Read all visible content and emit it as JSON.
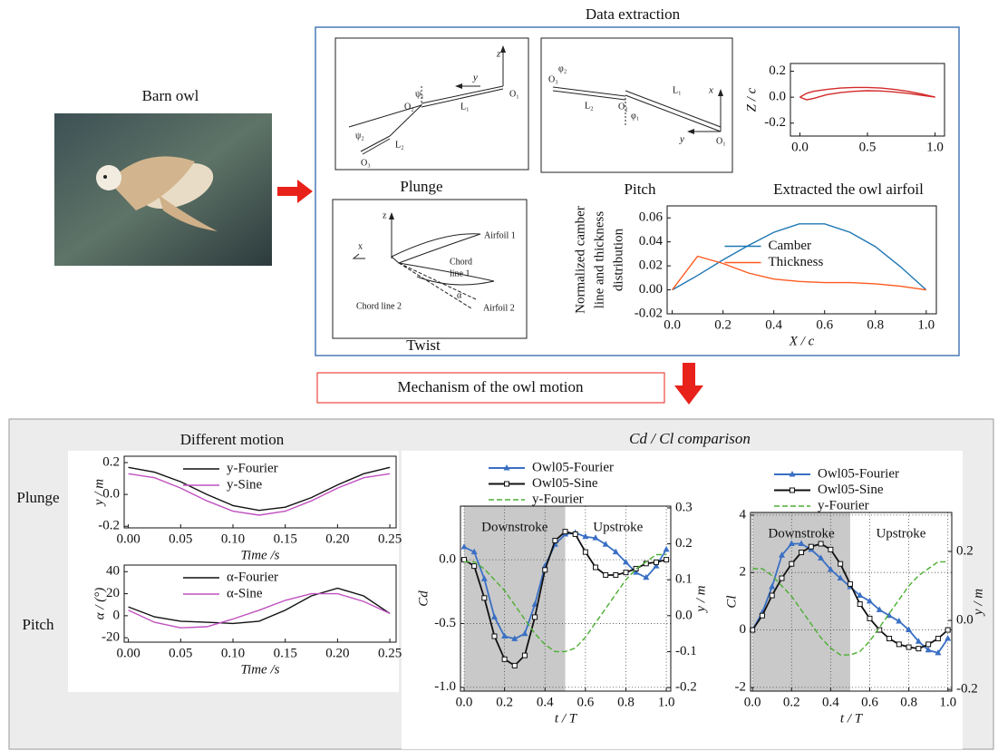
{
  "texts": {
    "barn_owl": "Barn owl",
    "data_extraction": "Data extraction",
    "plunge": "Plunge",
    "pitch": "Pitch",
    "twist": "Twist",
    "mechanism": "Mechanism of the owl motion",
    "different_motion": "Different motion",
    "comparison": "Cd / Cl comparison",
    "row_plunge": "Plunge",
    "row_pitch": "Pitch"
  },
  "diagrams": {
    "plunge": {
      "z": "z",
      "y": "y",
      "o1": "O₁",
      "o2": "O₂",
      "o3": "O₃",
      "psi1": "ψ₁",
      "psi2": "ψ₂",
      "l1": "L₁",
      "l2": "L₂"
    },
    "pitch": {
      "phi2": "φ₂",
      "o3": "O₃",
      "l2": "L₂",
      "o2": "O₂",
      "l1": "L₁",
      "x": "x",
      "phi1": "φ₁",
      "y": "y",
      "o1": "O₁"
    },
    "twist": {
      "z": "z",
      "x": "x",
      "airfoil1": "Airfoil 1",
      "chord1": [
        "Chord",
        "line 1"
      ],
      "chord2": "Chord line 2",
      "alpha": "α",
      "airfoil2": "Airfoil 2"
    }
  },
  "chart_data": [
    {
      "type": "line",
      "title": "Extracted the owl airfoil",
      "ylabel": "Z / c",
      "x": [
        0,
        0.05,
        0.1,
        0.2,
        0.3,
        0.4,
        0.5,
        0.6,
        0.7,
        0.8,
        0.9,
        1.0
      ],
      "series": [
        {
          "color": "#d42a2a",
          "values": [
            0,
            0.03,
            0.045,
            0.06,
            0.07,
            0.075,
            0.075,
            0.07,
            0.06,
            0.045,
            0.025,
            0
          ]
        },
        {
          "color": "#d42a2a",
          "values": [
            0,
            -0.02,
            -0.01,
            0.02,
            0.035,
            0.045,
            0.05,
            0.048,
            0.04,
            0.03,
            0.015,
            0
          ]
        }
      ],
      "xlim": [
        -0.07,
        1.07
      ],
      "ylim": [
        -0.3,
        0.26
      ],
      "xticks": [
        {
          "value": 0,
          "label": "0.0"
        },
        0.5,
        {
          "value": 1,
          "label": "1.0"
        }
      ],
      "yticks": [
        0.2,
        {
          "value": 0,
          "label": "0.0"
        },
        -0.2
      ]
    },
    {
      "type": "line",
      "ylabel": [
        "Normalized camber",
        "line and thickness",
        "distribution"
      ],
      "xlabel": "X / c",
      "x": [
        0,
        0.1,
        0.2,
        0.3,
        0.4,
        0.5,
        0.6,
        0.7,
        0.8,
        0.9,
        1.0
      ],
      "series": [
        {
          "name": "Camber",
          "color": "#1f77b4",
          "values": [
            0,
            0.012,
            0.025,
            0.037,
            0.048,
            0.055,
            0.055,
            0.048,
            0.036,
            0.019,
            0.0
          ]
        },
        {
          "name": "Thickness",
          "color": "#ff5a1f",
          "values": [
            0,
            0.028,
            0.022,
            0.014,
            0.009,
            0.007,
            0.006,
            0.006,
            0.005,
            0.003,
            0.0
          ]
        }
      ],
      "xlim": [
        -0.02,
        1.04
      ],
      "ylim": [
        -0.02,
        0.07
      ],
      "xticks": [
        {
          "value": 0,
          "label": "0.0"
        },
        0.2,
        0.4,
        0.6,
        0.8,
        {
          "value": 1,
          "label": "1.0"
        }
      ],
      "yticks": [
        0.06,
        0.04,
        0.02,
        {
          "value": 0,
          "label": "0.00"
        },
        -0.02
      ],
      "legend": "center"
    },
    {
      "type": "line",
      "ylabel": "y / m",
      "xlabel": "Time /s",
      "x": [
        0,
        0.025,
        0.05,
        0.075,
        0.1,
        0.125,
        0.15,
        0.175,
        0.2,
        0.225,
        0.25
      ],
      "series": [
        {
          "name": "y-Fourier",
          "color": "#111111",
          "values": [
            0.17,
            0.14,
            0.08,
            0.0,
            -0.07,
            -0.1,
            -0.08,
            -0.02,
            0.06,
            0.13,
            0.17
          ]
        },
        {
          "name": "y-Sine",
          "color": "#c050c0",
          "values": [
            0.13,
            0.105,
            0.04,
            -0.04,
            -0.105,
            -0.13,
            -0.105,
            -0.04,
            0.04,
            0.105,
            0.13
          ]
        }
      ],
      "xlim": [
        -0.004,
        0.256
      ],
      "ylim": [
        -0.21,
        0.24
      ],
      "xticks": [
        {
          "value": 0,
          "label": "0.00"
        },
        0.05,
        {
          "value": 0.1,
          "label": "0.10"
        },
        0.15,
        {
          "value": 0.2,
          "label": "0.20"
        },
        0.25
      ],
      "yticks": [
        0.2,
        {
          "value": 0,
          "label": "0.0"
        },
        -0.2
      ],
      "legend": "upper center"
    },
    {
      "type": "line",
      "ylabel": "α / (°)",
      "xlabel": "Time /s",
      "x": [
        0,
        0.025,
        0.05,
        0.075,
        0.1,
        0.125,
        0.15,
        0.175,
        0.2,
        0.225,
        0.25
      ],
      "series": [
        {
          "name": "α-Fourier",
          "color": "#111111",
          "values": [
            8,
            -1,
            -5,
            -6,
            -7,
            -5,
            5,
            18,
            25,
            18,
            2
          ]
        },
        {
          "name": "α-Sine",
          "color": "#c050c0",
          "values": [
            5,
            -6,
            -11,
            -10,
            -3,
            5,
            14,
            20,
            20,
            13,
            2
          ]
        }
      ],
      "xlim": [
        -0.004,
        0.256
      ],
      "ylim": [
        -24,
        46
      ],
      "xticks": [
        {
          "value": 0,
          "label": "0.00"
        },
        0.05,
        {
          "value": 0.1,
          "label": "0.10"
        },
        0.15,
        {
          "value": 0.2,
          "label": "0.20"
        },
        0.25
      ],
      "yticks": [
        40,
        20,
        0,
        -20
      ],
      "legend": "upper center"
    },
    {
      "type": "line",
      "ylabel": "Cd",
      "y2label": "y / m",
      "xlabel": "t / T",
      "x": [
        0,
        0.05,
        0.1,
        0.15,
        0.2,
        0.25,
        0.3,
        0.35,
        0.4,
        0.45,
        0.5,
        0.55,
        0.6,
        0.65,
        0.7,
        0.75,
        0.8,
        0.85,
        0.9,
        0.95,
        1.0
      ],
      "series": [
        {
          "name": "Owl05-Fourier",
          "color": "#3a6fc4",
          "marker": "triangle",
          "values": [
            0.1,
            0.06,
            -0.15,
            -0.45,
            -0.6,
            -0.62,
            -0.58,
            -0.35,
            -0.05,
            0.12,
            0.2,
            0.21,
            0.18,
            0.17,
            0.12,
            0.06,
            -0.02,
            -0.1,
            -0.14,
            -0.05,
            0.08
          ]
        },
        {
          "name": "Owl05-Sine",
          "color": "#111111",
          "marker": "square",
          "values": [
            0.0,
            -0.05,
            -0.3,
            -0.6,
            -0.78,
            -0.83,
            -0.75,
            -0.45,
            -0.08,
            0.15,
            0.22,
            0.2,
            0.06,
            -0.06,
            -0.12,
            -0.12,
            -0.1,
            -0.07,
            -0.03,
            -0.02,
            0.0
          ]
        },
        {
          "name": "y-Fourier",
          "color": "#4caf32",
          "dash": true,
          "axis": "y2",
          "values": [
            0.15,
            0.15,
            0.13,
            0.1,
            0.07,
            0.03,
            -0.01,
            -0.05,
            -0.08,
            -0.1,
            -0.1,
            -0.09,
            -0.06,
            -0.02,
            0.02,
            0.06,
            0.1,
            0.13,
            0.15,
            0.17,
            0.17
          ]
        }
      ],
      "xlim": [
        -0.018,
        1.022
      ],
      "ylim": [
        -1.03,
        0.42
      ],
      "y2lim": [
        -0.21,
        0.305
      ],
      "xticks": [
        {
          "value": 0,
          "label": "0.0"
        },
        0.2,
        0.4,
        0.6,
        0.8,
        {
          "value": 1,
          "label": "1.0"
        }
      ],
      "yticks": [
        {
          "value": 0,
          "label": "0.0"
        },
        -0.5,
        {
          "value": -1,
          "label": "-1.0"
        }
      ],
      "y2ticks": [
        0.3,
        0.2,
        0.1,
        {
          "value": 0,
          "label": "0.0"
        },
        -0.1,
        -0.2
      ],
      "regions": [
        {
          "x": [
            0,
            0.5
          ],
          "color": "#c9c9c9"
        }
      ],
      "annotations": [
        "Downstroke",
        "Upstroke"
      ],
      "legend": "above center",
      "grid": true
    },
    {
      "type": "line",
      "ylabel": "Cl",
      "y2label": "y / m",
      "xlabel": "t / T",
      "x": [
        0,
        0.05,
        0.1,
        0.15,
        0.2,
        0.25,
        0.3,
        0.35,
        0.4,
        0.45,
        0.5,
        0.55,
        0.6,
        0.65,
        0.7,
        0.75,
        0.8,
        0.85,
        0.9,
        0.95,
        1.0
      ],
      "series": [
        {
          "name": "Owl05-Fourier",
          "color": "#3a6fc4",
          "marker": "triangle",
          "values": [
            0.0,
            0.6,
            1.5,
            2.6,
            3.0,
            3.0,
            2.8,
            2.5,
            2.1,
            1.8,
            1.5,
            1.2,
            1.0,
            0.7,
            0.5,
            0.3,
            0.0,
            -0.4,
            -0.7,
            -0.8,
            -0.3
          ]
        },
        {
          "name": "Owl05-Sine",
          "color": "#111111",
          "marker": "square",
          "values": [
            0.0,
            0.5,
            1.2,
            1.8,
            2.3,
            2.7,
            2.9,
            3.0,
            2.8,
            2.3,
            1.6,
            0.9,
            0.4,
            0.0,
            -0.3,
            -0.5,
            -0.6,
            -0.65,
            -0.5,
            -0.3,
            0.0
          ]
        },
        {
          "name": "y-Fourier",
          "color": "#4caf32",
          "dash": true,
          "axis": "y2",
          "values": [
            0.15,
            0.15,
            0.13,
            0.1,
            0.07,
            0.03,
            -0.01,
            -0.05,
            -0.08,
            -0.1,
            -0.1,
            -0.09,
            -0.06,
            -0.02,
            0.02,
            0.06,
            0.1,
            0.13,
            0.15,
            0.17,
            0.17
          ]
        }
      ],
      "xlim": [
        -0.01,
        1.02
      ],
      "ylim": [
        -2.13,
        4.09
      ],
      "y2lim": [
        -0.205,
        0.313
      ],
      "xticks": [
        {
          "value": 0,
          "label": "0.0"
        },
        0.2,
        0.4,
        0.6,
        0.8,
        {
          "value": 1,
          "label": "1.0"
        }
      ],
      "yticks": [
        4,
        2,
        0,
        -2
      ],
      "y2ticks": [
        0.2,
        {
          "value": 0,
          "label": "0.0"
        },
        -0.2
      ],
      "regions": [
        {
          "x": [
            0,
            0.5
          ],
          "color": "#c9c9c9"
        }
      ],
      "annotations": [
        "Downstroke",
        "Upstroke"
      ],
      "legend": "above center",
      "grid": true
    }
  ]
}
